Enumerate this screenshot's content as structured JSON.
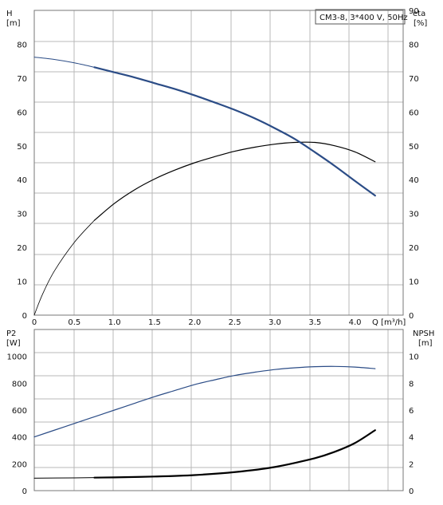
{
  "title_box": "CM3-8, 3*400 V, 50Hz",
  "chart_data": [
    {
      "type": "line",
      "panel": "top",
      "left_axis": {
        "label_line1": "H",
        "label_line2": "[m]",
        "ticks": [
          0,
          10,
          20,
          30,
          40,
          50,
          60,
          70,
          80
        ],
        "range": [
          0,
          90
        ]
      },
      "right_axis": {
        "label_line1": "eta",
        "label_line2": "[%]",
        "ticks": [
          0,
          10,
          20,
          30,
          40,
          50,
          60,
          70,
          80,
          90
        ],
        "range": [
          0,
          90
        ]
      },
      "x_axis": {
        "label": "Q [m³/h]",
        "ticks": [
          "0",
          "0.5",
          "1.0",
          "1.5",
          "2.0",
          "2.5",
          "3.0",
          "3.5",
          "4.0"
        ],
        "range": [
          0,
          4.6
        ]
      },
      "grid": true,
      "series": [
        {
          "id": "H",
          "color": "#2b4c86",
          "x": [
            0,
            0.25,
            0.5,
            0.75,
            1.0,
            1.25,
            1.5,
            1.75,
            2.0,
            2.25,
            2.5,
            2.75,
            3.0,
            3.25,
            3.5,
            3.75,
            4.0,
            4.25
          ],
          "y": [
            76.2,
            75.5,
            74.5,
            73.2,
            71.7,
            70.2,
            68.5,
            66.8,
            64.9,
            62.8,
            60.6,
            58.1,
            55.2,
            52.0,
            48.1,
            44.0,
            39.6,
            35.3
          ]
        },
        {
          "id": "eta",
          "color": "#000000",
          "x": [
            0,
            0.1,
            0.25,
            0.5,
            0.75,
            1.0,
            1.25,
            1.5,
            1.75,
            2.0,
            2.25,
            2.5,
            2.75,
            3.0,
            3.25,
            3.5,
            3.75,
            4.0,
            4.25
          ],
          "y": [
            0,
            6,
            13,
            21.5,
            28,
            33,
            37,
            40.2,
            42.8,
            45,
            46.8,
            48.4,
            49.6,
            50.5,
            51,
            51,
            50,
            48.2,
            45.3
          ]
        }
      ]
    },
    {
      "type": "line",
      "panel": "bottom",
      "left_axis": {
        "label_line1": "P2",
        "label_line2": "[W]",
        "ticks": [
          0,
          200,
          400,
          600,
          800,
          1000
        ],
        "range": [
          0,
          1200
        ]
      },
      "right_axis": {
        "label_line1": "NPSH",
        "label_line2": "[m]",
        "ticks": [
          0,
          2,
          4,
          6,
          8,
          10
        ],
        "range": [
          0,
          12
        ]
      },
      "x_axis": {
        "range": [
          0,
          4.6
        ]
      },
      "grid": true,
      "series": [
        {
          "id": "P2",
          "color": "#2b4c86",
          "x": [
            0,
            0.25,
            0.5,
            0.75,
            1.0,
            1.25,
            1.5,
            1.75,
            2.0,
            2.25,
            2.5,
            2.75,
            3.0,
            3.25,
            3.5,
            3.75,
            4.0,
            4.25
          ],
          "y": [
            400,
            450,
            500,
            550,
            600,
            650,
            700,
            745,
            790,
            825,
            858,
            882,
            902,
            915,
            923,
            925,
            920,
            908
          ]
        },
        {
          "id": "NPSH",
          "color": "#000000",
          "x": [
            0,
            0.5,
            0.75,
            1.0,
            1.5,
            2.0,
            2.5,
            3.0,
            3.5,
            3.75,
            4.0,
            4.25
          ],
          "y": [
            0.93,
            0.95,
            0.97,
            0.99,
            1.05,
            1.16,
            1.38,
            1.76,
            2.42,
            2.9,
            3.55,
            4.5
          ]
        }
      ]
    }
  ]
}
